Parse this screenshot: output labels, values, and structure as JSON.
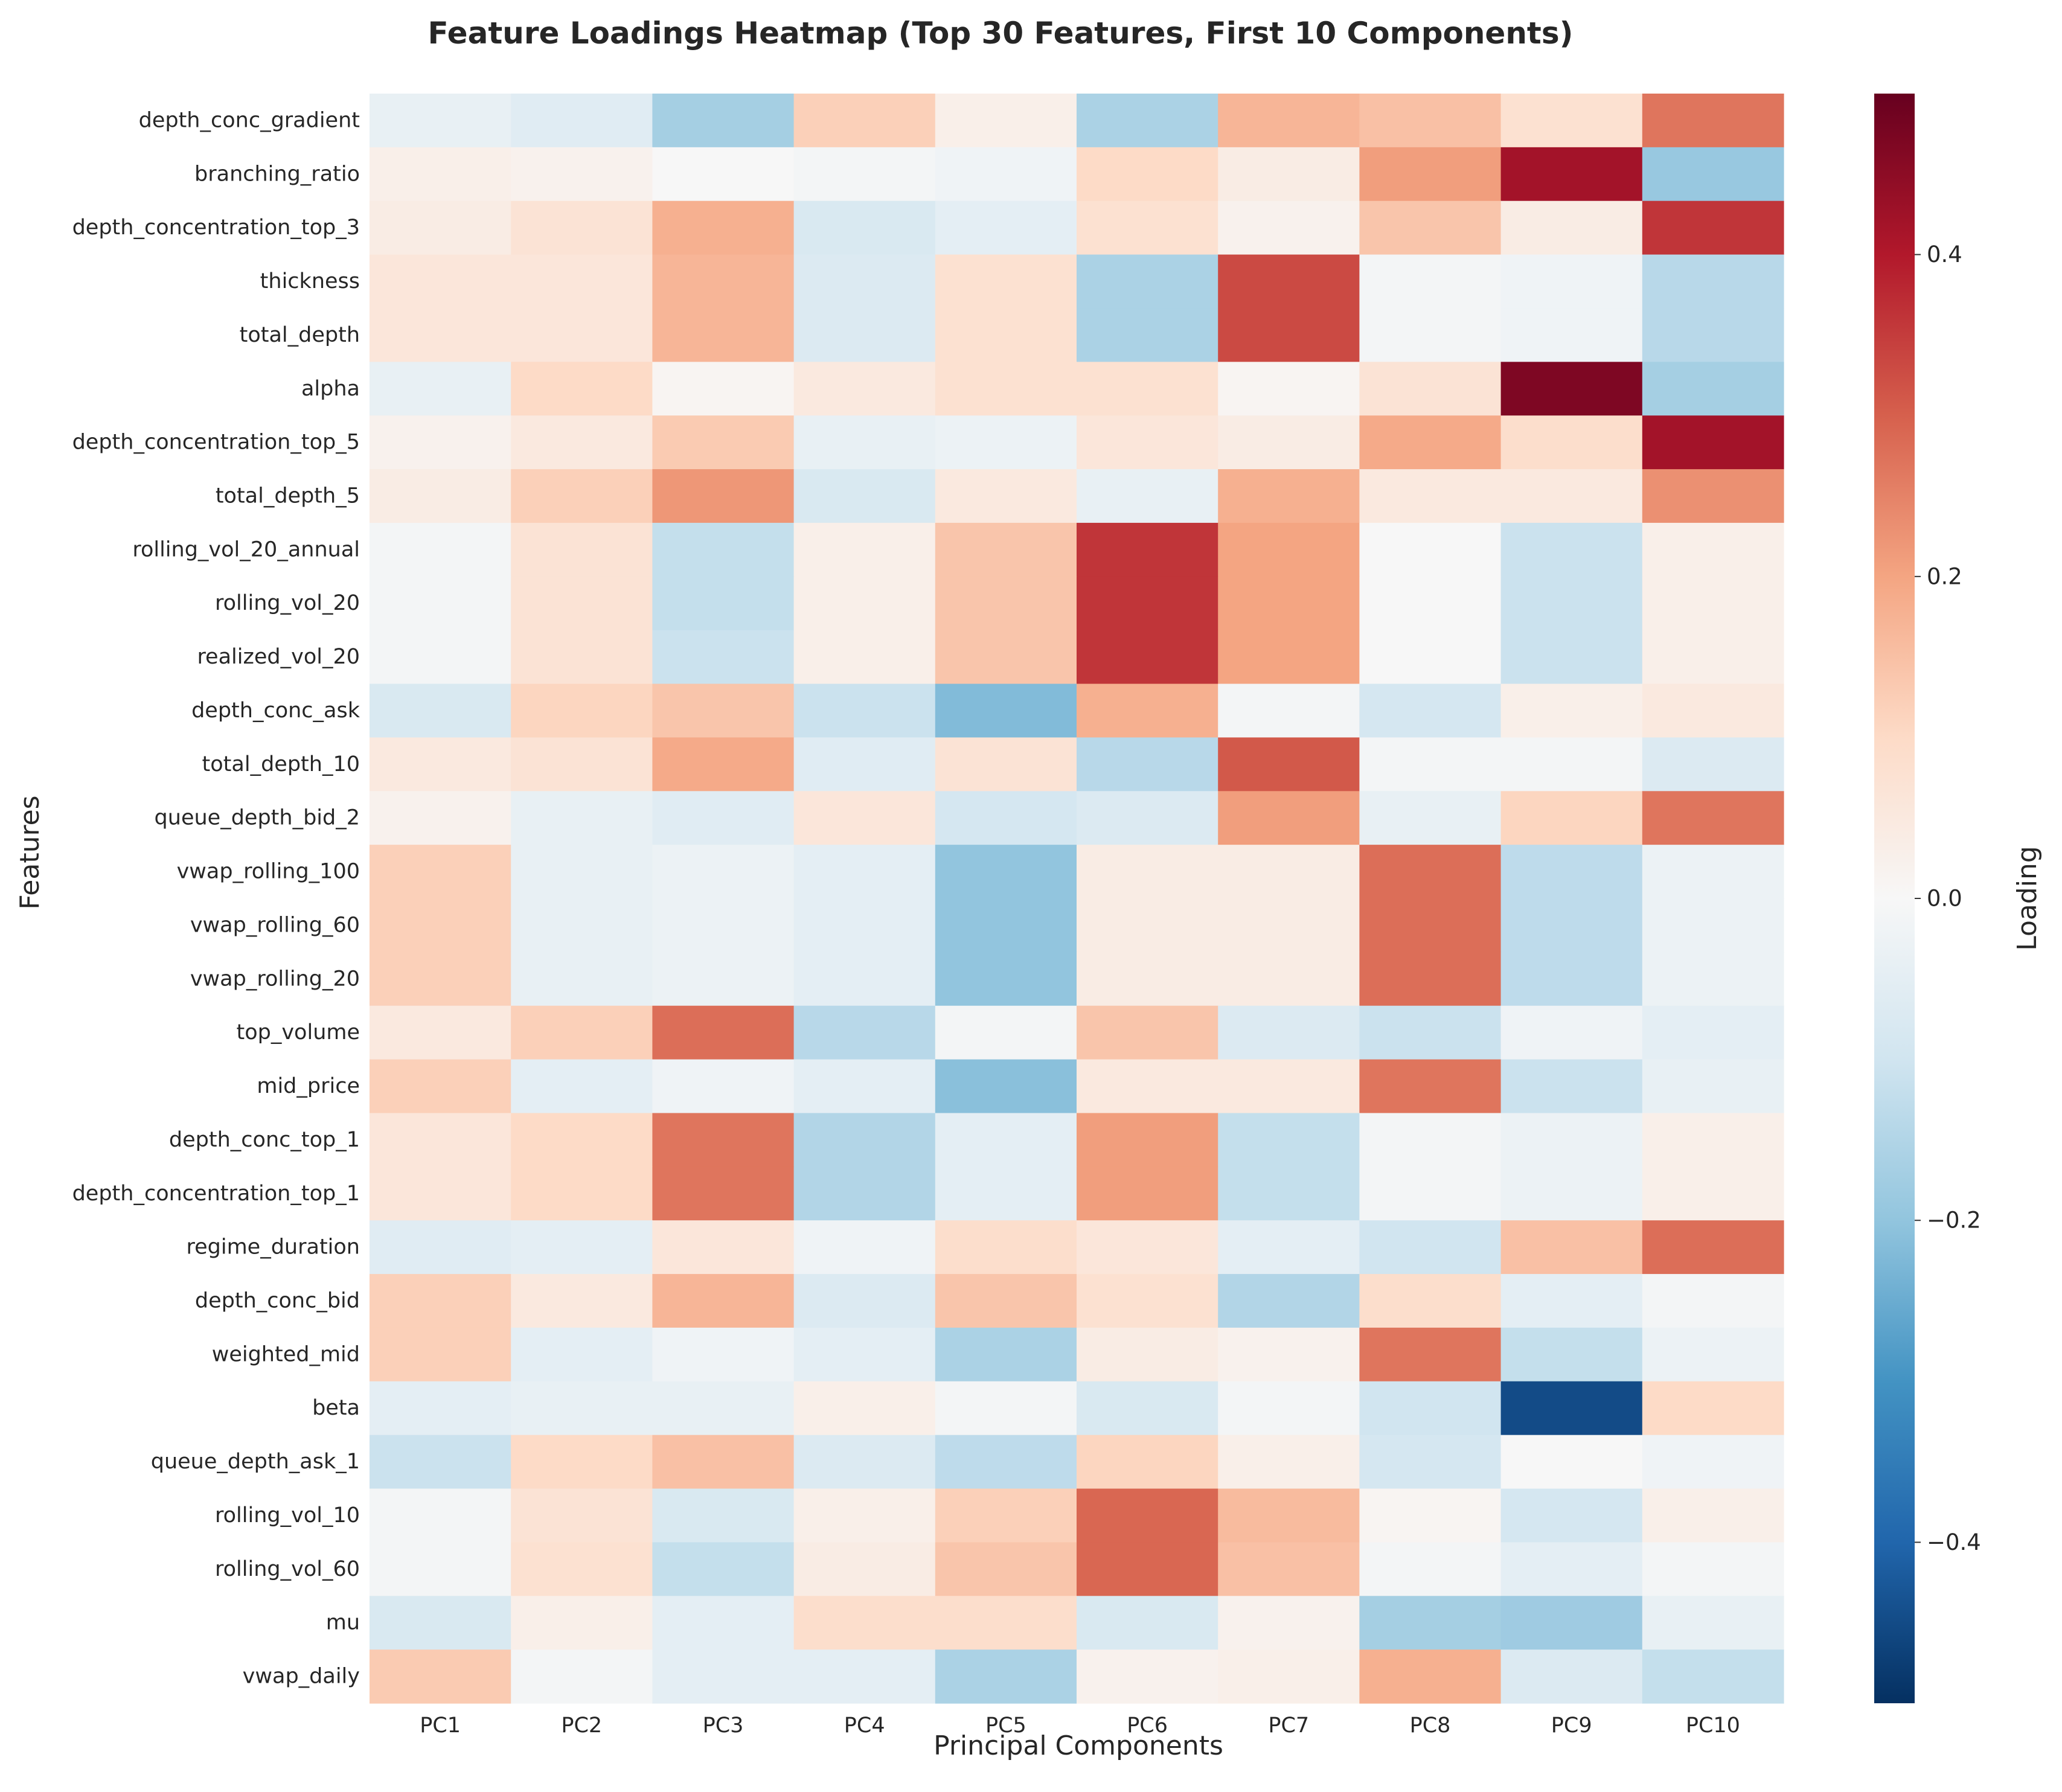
{
  "chart_data": {
    "type": "heatmap",
    "title": "Feature Loadings Heatmap (Top 30 Features, First 10 Components)",
    "xlabel": "Principal Components",
    "ylabel": "Features",
    "colorbar_label": "Loading",
    "colormap": "RdBu_r",
    "vmin": -0.5,
    "vmax": 0.5,
    "colorbar_ticks": [
      -0.4,
      -0.2,
      0.0,
      0.2,
      0.4
    ],
    "colorbar_tick_labels": [
      "−0.4",
      "−0.2",
      "0.0",
      "0.2",
      "0.4"
    ],
    "columns": [
      "PC1",
      "PC2",
      "PC3",
      "PC4",
      "PC5",
      "PC6",
      "PC7",
      "PC8",
      "PC9",
      "PC10"
    ],
    "rows": [
      "depth_conc_gradient",
      "branching_ratio",
      "depth_concentration_top_3",
      "thickness",
      "total_depth",
      "alpha",
      "depth_concentration_top_5",
      "total_depth_5",
      "rolling_vol_20_annual",
      "rolling_vol_20",
      "realized_vol_20",
      "depth_conc_ask",
      "total_depth_10",
      "queue_depth_bid_2",
      "vwap_rolling_100",
      "vwap_rolling_60",
      "vwap_rolling_20",
      "top_volume",
      "mid_price",
      "depth_conc_top_1",
      "depth_concentration_top_1",
      "regime_duration",
      "depth_conc_bid",
      "weighted_mid",
      "beta",
      "queue_depth_ask_1",
      "rolling_vol_10",
      "rolling_vol_60",
      "mu",
      "vwap_daily"
    ],
    "values": [
      [
        -0.04,
        -0.06,
        -0.17,
        0.12,
        0.03,
        -0.16,
        0.17,
        0.15,
        0.08,
        0.27
      ],
      [
        0.03,
        0.02,
        0.0,
        -0.01,
        -0.02,
        0.1,
        0.04,
        0.21,
        0.42,
        -0.19
      ],
      [
        0.04,
        0.07,
        0.18,
        -0.08,
        -0.05,
        0.08,
        0.02,
        0.14,
        0.04,
        0.36
      ],
      [
        0.06,
        0.06,
        0.17,
        -0.07,
        0.08,
        -0.16,
        0.33,
        -0.01,
        -0.02,
        -0.14
      ],
      [
        0.06,
        0.06,
        0.17,
        -0.07,
        0.08,
        -0.16,
        0.33,
        -0.01,
        -0.02,
        -0.14
      ],
      [
        -0.04,
        0.1,
        0.01,
        0.05,
        0.08,
        0.08,
        0.01,
        0.07,
        0.47,
        -0.17
      ],
      [
        0.02,
        0.05,
        0.13,
        -0.04,
        -0.03,
        0.06,
        0.04,
        0.19,
        0.09,
        0.42
      ],
      [
        0.04,
        0.12,
        0.22,
        -0.08,
        0.05,
        -0.04,
        0.18,
        0.05,
        0.05,
        0.23
      ],
      [
        -0.01,
        0.07,
        -0.12,
        0.03,
        0.14,
        0.36,
        0.2,
        0.0,
        -0.11,
        0.03
      ],
      [
        -0.01,
        0.07,
        -0.12,
        0.03,
        0.14,
        0.36,
        0.2,
        0.0,
        -0.11,
        0.03
      ],
      [
        -0.01,
        0.07,
        -0.11,
        0.03,
        0.14,
        0.36,
        0.2,
        0.0,
        -0.11,
        0.03
      ],
      [
        -0.08,
        0.11,
        0.14,
        -0.11,
        -0.22,
        0.18,
        -0.01,
        -0.09,
        0.03,
        0.05
      ],
      [
        0.05,
        0.07,
        0.19,
        -0.06,
        0.07,
        -0.14,
        0.31,
        -0.01,
        -0.01,
        -0.07
      ],
      [
        0.02,
        -0.04,
        -0.06,
        0.06,
        -0.09,
        -0.07,
        0.21,
        -0.04,
        0.11,
        0.27
      ],
      [
        0.12,
        -0.04,
        -0.03,
        -0.05,
        -0.2,
        0.04,
        0.04,
        0.28,
        -0.13,
        -0.03
      ],
      [
        0.12,
        -0.04,
        -0.03,
        -0.05,
        -0.2,
        0.04,
        0.04,
        0.28,
        -0.13,
        -0.03
      ],
      [
        0.12,
        -0.04,
        -0.03,
        -0.05,
        -0.2,
        0.04,
        0.04,
        0.28,
        -0.13,
        -0.03
      ],
      [
        0.05,
        0.12,
        0.28,
        -0.14,
        -0.01,
        0.14,
        -0.07,
        -0.11,
        -0.02,
        -0.05
      ],
      [
        0.12,
        -0.05,
        -0.02,
        -0.05,
        -0.21,
        0.05,
        0.05,
        0.27,
        -0.11,
        -0.04
      ],
      [
        0.06,
        0.1,
        0.27,
        -0.15,
        -0.05,
        0.21,
        -0.12,
        -0.01,
        -0.03,
        0.03
      ],
      [
        0.06,
        0.1,
        0.27,
        -0.15,
        -0.05,
        0.21,
        -0.12,
        -0.01,
        -0.03,
        0.03
      ],
      [
        -0.06,
        -0.05,
        0.06,
        -0.02,
        0.09,
        0.06,
        -0.05,
        -0.1,
        0.15,
        0.28
      ],
      [
        0.12,
        0.05,
        0.17,
        -0.07,
        0.14,
        0.08,
        -0.15,
        0.09,
        -0.05,
        -0.01
      ],
      [
        0.12,
        -0.05,
        -0.02,
        -0.05,
        -0.16,
        0.04,
        0.02,
        0.27,
        -0.12,
        -0.03
      ],
      [
        -0.05,
        -0.04,
        -0.04,
        0.03,
        -0.01,
        -0.08,
        -0.01,
        -0.1,
        -0.45,
        0.1
      ],
      [
        -0.11,
        0.1,
        0.15,
        -0.07,
        -0.13,
        0.11,
        0.03,
        -0.09,
        0.0,
        -0.02
      ],
      [
        -0.01,
        0.07,
        -0.08,
        0.03,
        0.12,
        0.29,
        0.16,
        0.01,
        -0.09,
        0.03
      ],
      [
        -0.01,
        0.08,
        -0.12,
        0.04,
        0.14,
        0.29,
        0.15,
        -0.01,
        -0.05,
        -0.01
      ],
      [
        -0.08,
        0.03,
        -0.05,
        0.09,
        0.09,
        -0.08,
        0.02,
        -0.17,
        -0.18,
        -0.04
      ],
      [
        0.13,
        -0.01,
        -0.05,
        -0.05,
        -0.16,
        0.02,
        0.03,
        0.18,
        -0.07,
        -0.12
      ]
    ]
  }
}
